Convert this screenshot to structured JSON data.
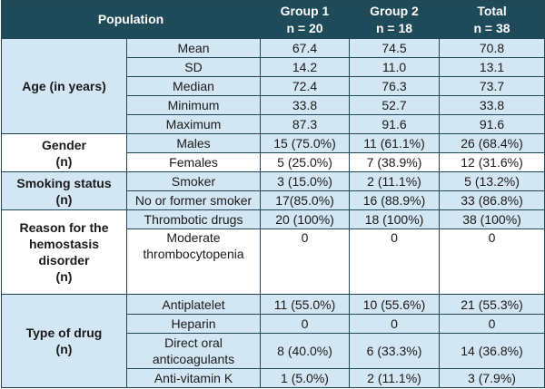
{
  "header": {
    "population": "Population",
    "group1_title": "Group 1",
    "group1_n": "n = 20",
    "group2_title": "Group 2",
    "group2_n": "n = 18",
    "total_title": "Total",
    "total_n": "n = 38"
  },
  "age": {
    "label": "Age (in years)",
    "rows": [
      {
        "label": "Mean",
        "g1": "67.4",
        "g2": "74.5",
        "total": "70.8"
      },
      {
        "label": "SD",
        "g1": "14.2",
        "g2": "11.0",
        "total": "13.1"
      },
      {
        "label": "Median",
        "g1": "72.4",
        "g2": "76.3",
        "total": "73.7"
      },
      {
        "label": "Minimum",
        "g1": "33.8",
        "g2": "52.7",
        "total": "33.8"
      },
      {
        "label": "Maximum",
        "g1": "87.3",
        "g2": "91.6",
        "total": "91.6"
      }
    ]
  },
  "gender": {
    "label_line1": "Gender",
    "label_line2": "(n)",
    "rows": [
      {
        "label": "Males",
        "g1": "15 (75.0%)",
        "g2": "11 (61.1%)",
        "total": "26 (68.4%)"
      },
      {
        "label": "Females",
        "g1": "5 (25.0%)",
        "g2": "7 (38.9%)",
        "total": "12 (31.6%)"
      }
    ]
  },
  "smoking": {
    "label_line1": "Smoking status",
    "label_line2": "(n)",
    "rows": [
      {
        "label": "Smoker",
        "g1": "3 (15.0%)",
        "g2": "2 (11.1%)",
        "total": "5 (13.2%)"
      },
      {
        "label": "No or former smoker",
        "g1": "17(85.0%)",
        "g2": "16 (88.9%)",
        "total": "33 (86.8%)"
      }
    ]
  },
  "reason": {
    "label_line1": "Reason for the",
    "label_line2": "hemostasis",
    "label_line3": "disorder",
    "label_line4": "(n)",
    "rows": [
      {
        "label": "Thrombotic drugs",
        "g1": "20 (100%)",
        "g2": "18 (100%)",
        "total": "38 (100%)"
      },
      {
        "label_line1": "Moderate",
        "label_line2": "thrombocytopenia",
        "g1": "0",
        "g2": "0",
        "total": "0"
      }
    ]
  },
  "drug": {
    "label_line1": "Type of drug",
    "label_line2": "(n)",
    "rows": [
      {
        "label": "Antiplatelet",
        "g1": "11 (55.0%)",
        "g2": "10 (55.6%)",
        "total": "21 (55.3%)"
      },
      {
        "label": "Heparin",
        "g1": "0",
        "g2": "0",
        "total": "0"
      },
      {
        "label_line1": "Direct oral",
        "label_line2": "anticoagulants",
        "g1": "8 (40.0%)",
        "g2": "6 (33.3%)",
        "total": "14 (36.8%)"
      },
      {
        "label": "Anti-vitamin K",
        "g1": "1 (5.0%)",
        "g2": "2 (11.1%)",
        "total": "3 (7.9%)"
      }
    ]
  }
}
